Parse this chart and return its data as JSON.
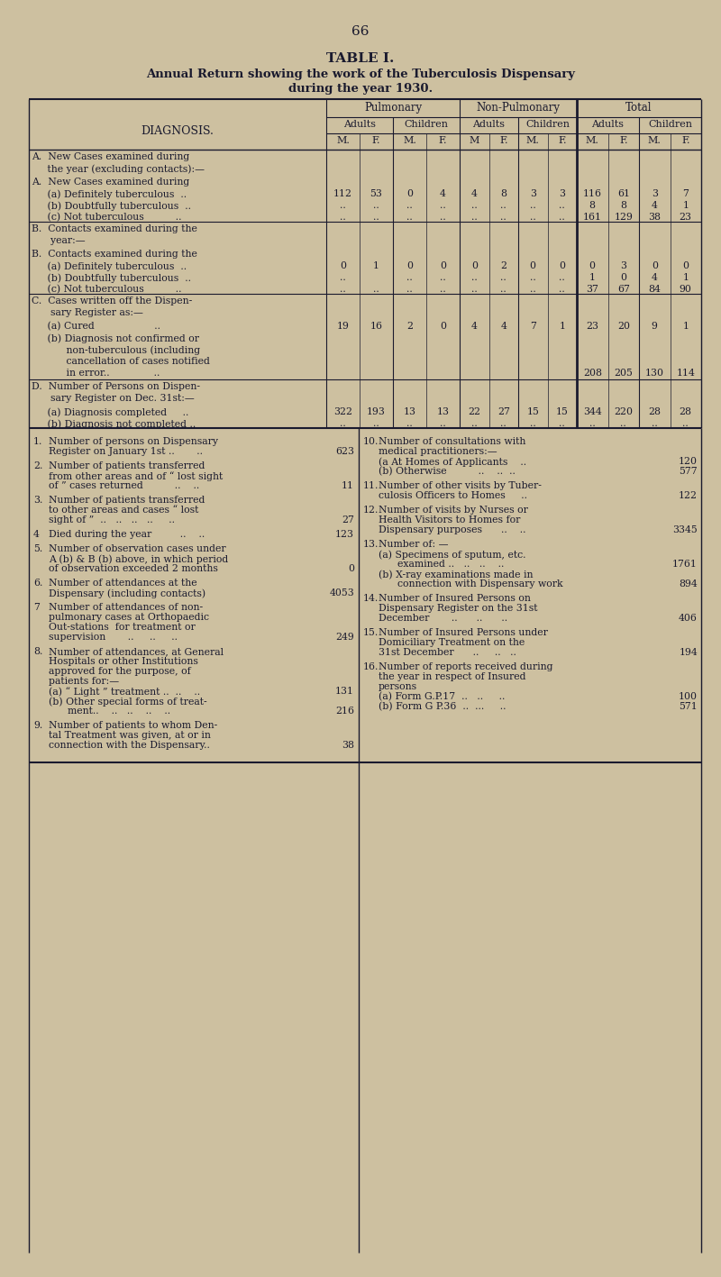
{
  "page_number": "66",
  "title1": "TABLE I.",
  "title2": "Annual Return showing the work of the Tuberculosis Dispensary",
  "title3": "during the year 1930.",
  "bg_color": "#cdc0a0",
  "text_color": "#1a1a2e",
  "table_header_groups": [
    "Pulmonary",
    "Non-Pulmonary",
    "Total"
  ],
  "table_sub_headers": [
    "Adults",
    "Children",
    "Adults",
    "Children",
    "Adults",
    "Children"
  ],
  "table_mf_headers": [
    "M.",
    "F.",
    "M.",
    "F.",
    "M",
    "F.",
    "M.",
    "F.",
    "M.",
    "F.",
    "M.",
    "F."
  ],
  "section_A_rows": [
    {
      "label1": "A.  New Cases examined during",
      "label2": "     the year (excluding contacts):—",
      "vals": []
    },
    {
      "label1": "     (a) Definitely tuberculous  ..",
      "vals": [
        "112",
        "53",
        "0",
        "4",
        "4",
        "8",
        "3",
        "3",
        "116",
        "61",
        "3",
        "7"
      ]
    },
    {
      "label1": "     (b) Doubtfully tuberculous  ..",
      "vals": [
        "..",
        "..",
        "..",
        "..",
        "..",
        "..",
        "..",
        "..",
        "8",
        "8",
        "4",
        "1"
      ]
    },
    {
      "label1": "     (c) Not tuberculous          ..",
      "vals": [
        "..",
        "..",
        "..",
        "..",
        "..",
        "..",
        "..",
        "..",
        "161",
        "129",
        "38",
        "23"
      ]
    }
  ],
  "section_B_rows": [
    {
      "label1": "B.  Contacts examined during the",
      "label2": "      year:—",
      "vals": []
    },
    {
      "label1": "     (a) Definitely tuberculous  ..",
      "vals": [
        "0",
        "1",
        "0",
        "0",
        "0",
        "2",
        "0",
        "0",
        "0",
        "3",
        "0",
        "0"
      ]
    },
    {
      "label1": "     (b) Doubtfully tuberculous  ..",
      "vals": [
        "..",
        "",
        "..",
        "..",
        "..",
        "..",
        "..",
        "..",
        "1",
        "0",
        "4",
        "1"
      ]
    },
    {
      "label1": "     (c) Not tuberculous          ..",
      "vals": [
        "..",
        "..",
        "..",
        "..",
        "..",
        "..",
        "..",
        "..",
        "37",
        "67",
        "84",
        "90"
      ]
    }
  ],
  "section_C_rows": [
    {
      "label1": "C.  Cases written off the Dispen-",
      "label2": "      sary Register as:—",
      "vals": []
    },
    {
      "label1": "     (a) Cured                   ..",
      "vals": [
        "19",
        "16",
        "2",
        "0",
        "4",
        "4",
        "7",
        "1",
        "23",
        "20",
        "9",
        "1"
      ]
    },
    {
      "label1": "     (b) Diagnosis not confirmed or",
      "label2": "           non-tuberculous (including",
      "label3": "           cancellation of cases notified",
      "label4": "           in error..              ..",
      "vals": [
        ".",
        "..",
        "..",
        "..",
        "..",
        "",
        "..",
        "",
        "208",
        "205",
        "130",
        "114"
      ]
    }
  ],
  "section_D_rows": [
    {
      "label1": "D.  Number of Persons on Dispen-",
      "label2": "      sary Register on Dec. 31st:—",
      "vals": []
    },
    {
      "label1": "     (a) Diagnosis completed     ..",
      "vals": [
        "322",
        "193",
        "13",
        "13",
        "22",
        "27",
        "15",
        "15",
        "344",
        "220",
        "28",
        "28"
      ]
    },
    {
      "label1": "     (b) Diagnosis not completed ..",
      "vals": [
        "..",
        "..",
        "..",
        "..",
        "..",
        "..",
        "..",
        "..",
        "..",
        "..",
        "..",
        ".."
      ]
    }
  ],
  "left_items": [
    {
      "num": "1.",
      "lines": [
        "Number of persons on Dispensary",
        "Register on January 1st ..       .."
      ],
      "val": "623"
    },
    {
      "num": "2.",
      "lines": [
        "Number of patients transferred",
        "from other areas and of “ lost sight",
        "of ” cases returned          ..    .."
      ],
      "val": "11"
    },
    {
      "num": "3.",
      "lines": [
        "Number of patients transferred",
        "to other areas and cases “ lost",
        "sight of ”  ..   ..   ..   ..     .."
      ],
      "val": "27"
    },
    {
      "num": "4",
      "lines": [
        "Died during the year         ..    .."
      ],
      "val": "123"
    },
    {
      "num": "5.",
      "lines": [
        "Number of observation cases under",
        "A (b) & B (b) above, in which period",
        "of observation exceeded 2 months"
      ],
      "val": "0"
    },
    {
      "num": "6.",
      "lines": [
        "Number of attendances at the",
        "Dispensary (including contacts)"
      ],
      "val": "4053"
    },
    {
      "num": "7",
      "lines": [
        "Number of attendances of non-",
        "pulmonary cases at Orthopaedic",
        "Out-stations  for treatment or",
        "supervision       ..     ..     .."
      ],
      "val": "249"
    },
    {
      "num": "8.",
      "lines": [
        "Number of attendances, at General",
        "Hospitals or other Institutions",
        "approved for the purpose, of",
        "patients for:—",
        "(a) “ Light ” treatment ..  ..    ..",
        "(b) Other special forms of treat-",
        "      ment..    ..   ..    ..    .."
      ],
      "val": "",
      "val_lines": {
        "4": "131",
        "6": "216"
      }
    },
    {
      "num": "9.",
      "lines": [
        "Number of patients to whom Den-",
        "tal Treatment was given, at or in",
        "connection with the Dispensary.."
      ],
      "val": "38"
    }
  ],
  "right_items": [
    {
      "num": "10.",
      "lines": [
        "Number of consultations with",
        "medical practitioners:—",
        "(a At Homes of Applicants    ..",
        "(b) Otherwise          ..    ..  .."
      ],
      "val": "",
      "val_lines": {
        "2": "120",
        "3": "577"
      }
    },
    {
      "num": "11.",
      "lines": [
        "Number of other visits by Tuber-",
        "culosis Officers to Homes     .."
      ],
      "val": "122",
      "val_line": 1
    },
    {
      "num": "12.",
      "lines": [
        "Number of visits by Nurses or",
        "Health Visitors to Homes for",
        "Dispensary purposes      ..    .."
      ],
      "val": "3345",
      "val_line": 2
    },
    {
      "num": "13.",
      "lines": [
        "Number of: —",
        "(a) Specimens of sputum, etc.",
        "      examined ..   ..   ..    ..",
        "(b) X-ray examinations made in",
        "      connection with Dispensary work"
      ],
      "val": "",
      "val_lines": {
        "2": "1761",
        "4": "894"
      }
    },
    {
      "num": "14.",
      "lines": [
        "Number of Insured Persons on",
        "Dispensary Register on the 31st",
        "December       ..      ..      .."
      ],
      "val": "406",
      "val_line": 2
    },
    {
      "num": "15.",
      "lines": [
        "Number of Insured Persons under",
        "Domiciliary Treatment on the",
        "31st December      ..     ..   .."
      ],
      "val": "194",
      "val_line": 2
    },
    {
      "num": "16.",
      "lines": [
        "Number of reports received during",
        "the year in respect of Insured",
        "persons",
        "(a) Form G.P.17  ..   ..     ..",
        "(b) Form G P.36  ..  ...     .."
      ],
      "val": "",
      "val_lines": {
        "3": "100",
        "4": "571"
      }
    }
  ]
}
